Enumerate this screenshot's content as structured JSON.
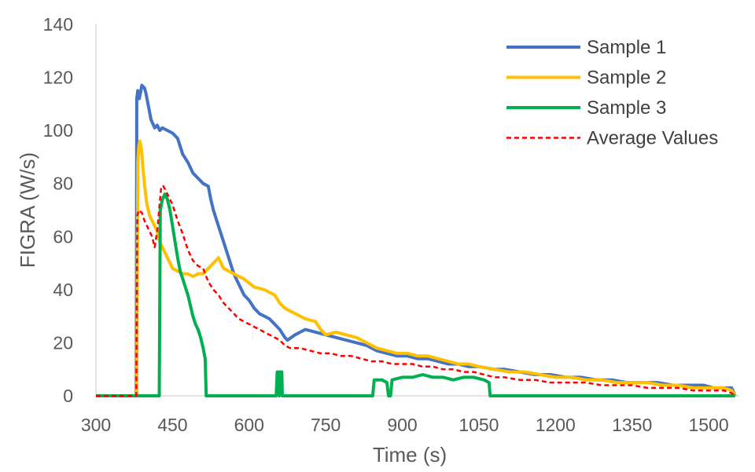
{
  "chart_data": {
    "type": "line",
    "xlabel": "Time (s)",
    "ylabel": "FIGRA (W/s)",
    "xlim": [
      300,
      1560
    ],
    "ylim": [
      0,
      140
    ],
    "x_ticks": [
      300,
      450,
      600,
      750,
      900,
      1050,
      1200,
      1350,
      1500
    ],
    "y_ticks": [
      0,
      20,
      40,
      60,
      80,
      100,
      120,
      140
    ],
    "grid": false,
    "legend_position": "top-right",
    "series": [
      {
        "name": "Sample 1",
        "color": "#4472C4",
        "dash": false,
        "points": [
          [
            300,
            0
          ],
          [
            377,
            0
          ],
          [
            379,
            0
          ],
          [
            380,
            112
          ],
          [
            382,
            115
          ],
          [
            385,
            112
          ],
          [
            390,
            117
          ],
          [
            395,
            116
          ],
          [
            398,
            114
          ],
          [
            402,
            110
          ],
          [
            408,
            104
          ],
          [
            415,
            101
          ],
          [
            420,
            102
          ],
          [
            425,
            100
          ],
          [
            430,
            101
          ],
          [
            440,
            100
          ],
          [
            450,
            99
          ],
          [
            460,
            97
          ],
          [
            470,
            91
          ],
          [
            480,
            88
          ],
          [
            490,
            84
          ],
          [
            500,
            82
          ],
          [
            510,
            80
          ],
          [
            520,
            79
          ],
          [
            525,
            74
          ],
          [
            530,
            70
          ],
          [
            540,
            64
          ],
          [
            550,
            58
          ],
          [
            560,
            52
          ],
          [
            570,
            46
          ],
          [
            580,
            42
          ],
          [
            590,
            38
          ],
          [
            600,
            36
          ],
          [
            610,
            33
          ],
          [
            620,
            31
          ],
          [
            630,
            30
          ],
          [
            640,
            29
          ],
          [
            650,
            27
          ],
          [
            660,
            25
          ],
          [
            670,
            22
          ],
          [
            675,
            21
          ],
          [
            690,
            23
          ],
          [
            710,
            25
          ],
          [
            730,
            24
          ],
          [
            750,
            23
          ],
          [
            770,
            22
          ],
          [
            790,
            21
          ],
          [
            810,
            20
          ],
          [
            830,
            19
          ],
          [
            850,
            17
          ],
          [
            870,
            16
          ],
          [
            890,
            15
          ],
          [
            910,
            15
          ],
          [
            930,
            14
          ],
          [
            950,
            14
          ],
          [
            970,
            13
          ],
          [
            990,
            12
          ],
          [
            1010,
            12
          ],
          [
            1030,
            11
          ],
          [
            1050,
            11
          ],
          [
            1080,
            10
          ],
          [
            1100,
            10
          ],
          [
            1130,
            9
          ],
          [
            1160,
            8
          ],
          [
            1190,
            8
          ],
          [
            1220,
            7
          ],
          [
            1250,
            7
          ],
          [
            1280,
            6
          ],
          [
            1310,
            6
          ],
          [
            1340,
            5
          ],
          [
            1370,
            5
          ],
          [
            1400,
            5
          ],
          [
            1430,
            4
          ],
          [
            1460,
            4
          ],
          [
            1490,
            4
          ],
          [
            1510,
            3
          ],
          [
            1530,
            3
          ],
          [
            1545,
            3
          ],
          [
            1552,
            0
          ]
        ]
      },
      {
        "name": "Sample 2",
        "color": "#FFC000",
        "dash": false,
        "points": [
          [
            300,
            0
          ],
          [
            377,
            0
          ],
          [
            380,
            0
          ],
          [
            382,
            88
          ],
          [
            384,
            94
          ],
          [
            386,
            96
          ],
          [
            389,
            93
          ],
          [
            392,
            86
          ],
          [
            396,
            78
          ],
          [
            400,
            72
          ],
          [
            405,
            68
          ],
          [
            410,
            66
          ],
          [
            420,
            62
          ],
          [
            425,
            58
          ],
          [
            430,
            56
          ],
          [
            440,
            52
          ],
          [
            450,
            48
          ],
          [
            460,
            47
          ],
          [
            470,
            46
          ],
          [
            480,
            46
          ],
          [
            490,
            45
          ],
          [
            500,
            46
          ],
          [
            510,
            46
          ],
          [
            520,
            48
          ],
          [
            530,
            50
          ],
          [
            540,
            52
          ],
          [
            550,
            48
          ],
          [
            560,
            47
          ],
          [
            570,
            46
          ],
          [
            590,
            44
          ],
          [
            610,
            41
          ],
          [
            630,
            40
          ],
          [
            650,
            38
          ],
          [
            660,
            35
          ],
          [
            670,
            33
          ],
          [
            690,
            31
          ],
          [
            710,
            29
          ],
          [
            730,
            28
          ],
          [
            740,
            25
          ],
          [
            750,
            23
          ],
          [
            770,
            24
          ],
          [
            790,
            23
          ],
          [
            810,
            22
          ],
          [
            830,
            20
          ],
          [
            850,
            18
          ],
          [
            870,
            17
          ],
          [
            890,
            16
          ],
          [
            910,
            16
          ],
          [
            930,
            15
          ],
          [
            950,
            15
          ],
          [
            970,
            14
          ],
          [
            990,
            13
          ],
          [
            1010,
            12
          ],
          [
            1030,
            12
          ],
          [
            1050,
            11
          ],
          [
            1080,
            10
          ],
          [
            1110,
            9
          ],
          [
            1140,
            9
          ],
          [
            1170,
            8
          ],
          [
            1200,
            7
          ],
          [
            1230,
            7
          ],
          [
            1260,
            6
          ],
          [
            1290,
            6
          ],
          [
            1320,
            5
          ],
          [
            1350,
            5
          ],
          [
            1380,
            5
          ],
          [
            1410,
            4
          ],
          [
            1440,
            4
          ],
          [
            1470,
            3
          ],
          [
            1500,
            3
          ],
          [
            1530,
            3
          ],
          [
            1545,
            2
          ],
          [
            1552,
            0
          ]
        ]
      },
      {
        "name": "Sample 3",
        "color": "#00B050",
        "dash": false,
        "points": [
          [
            300,
            0
          ],
          [
            420,
            0
          ],
          [
            424,
            0
          ],
          [
            426,
            70
          ],
          [
            430,
            74
          ],
          [
            435,
            76
          ],
          [
            440,
            74
          ],
          [
            445,
            70
          ],
          [
            450,
            64
          ],
          [
            455,
            58
          ],
          [
            460,
            52
          ],
          [
            465,
            47
          ],
          [
            470,
            44
          ],
          [
            480,
            38
          ],
          [
            490,
            30
          ],
          [
            495,
            27
          ],
          [
            500,
            25
          ],
          [
            505,
            22
          ],
          [
            510,
            18
          ],
          [
            514,
            14
          ],
          [
            516,
            0
          ],
          [
            653,
            0
          ],
          [
            655,
            9
          ],
          [
            658,
            9
          ],
          [
            659,
            0
          ],
          [
            661,
            9
          ],
          [
            664,
            9
          ],
          [
            665,
            0
          ],
          [
            842,
            0
          ],
          [
            845,
            6
          ],
          [
            860,
            6
          ],
          [
            870,
            5
          ],
          [
            873,
            0
          ],
          [
            877,
            0
          ],
          [
            880,
            6
          ],
          [
            900,
            7
          ],
          [
            920,
            7
          ],
          [
            940,
            8
          ],
          [
            960,
            7
          ],
          [
            980,
            7
          ],
          [
            1000,
            6
          ],
          [
            1020,
            7
          ],
          [
            1040,
            7
          ],
          [
            1060,
            6
          ],
          [
            1070,
            5
          ],
          [
            1072,
            0
          ],
          [
            1552,
            0
          ]
        ]
      },
      {
        "name": "Average Values",
        "color": "#FF0000",
        "dash": true,
        "points": [
          [
            300,
            0
          ],
          [
            377,
            0
          ],
          [
            379,
            0
          ],
          [
            381,
            68
          ],
          [
            384,
            70
          ],
          [
            390,
            69
          ],
          [
            395,
            66
          ],
          [
            400,
            64
          ],
          [
            405,
            62
          ],
          [
            410,
            60
          ],
          [
            415,
            56
          ],
          [
            420,
            62
          ],
          [
            425,
            73
          ],
          [
            428,
            79
          ],
          [
            432,
            79
          ],
          [
            440,
            76
          ],
          [
            450,
            72
          ],
          [
            460,
            66
          ],
          [
            470,
            61
          ],
          [
            480,
            55
          ],
          [
            490,
            51
          ],
          [
            500,
            49
          ],
          [
            510,
            48
          ],
          [
            520,
            43
          ],
          [
            530,
            40
          ],
          [
            540,
            38
          ],
          [
            550,
            35
          ],
          [
            560,
            33
          ],
          [
            570,
            31
          ],
          [
            580,
            29
          ],
          [
            590,
            28
          ],
          [
            600,
            27
          ],
          [
            620,
            25
          ],
          [
            640,
            23
          ],
          [
            660,
            21
          ],
          [
            670,
            19
          ],
          [
            680,
            18
          ],
          [
            700,
            18
          ],
          [
            720,
            17
          ],
          [
            740,
            16
          ],
          [
            760,
            16
          ],
          [
            780,
            15
          ],
          [
            800,
            15
          ],
          [
            820,
            14
          ],
          [
            840,
            13
          ],
          [
            860,
            13
          ],
          [
            880,
            12
          ],
          [
            900,
            12
          ],
          [
            920,
            12
          ],
          [
            940,
            11
          ],
          [
            960,
            11
          ],
          [
            980,
            10
          ],
          [
            1000,
            10
          ],
          [
            1020,
            9
          ],
          [
            1040,
            9
          ],
          [
            1060,
            8
          ],
          [
            1080,
            7
          ],
          [
            1100,
            7
          ],
          [
            1130,
            6
          ],
          [
            1160,
            6
          ],
          [
            1190,
            5
          ],
          [
            1220,
            5
          ],
          [
            1260,
            5
          ],
          [
            1290,
            4
          ],
          [
            1320,
            4
          ],
          [
            1350,
            4
          ],
          [
            1380,
            3
          ],
          [
            1410,
            3
          ],
          [
            1440,
            3
          ],
          [
            1470,
            2
          ],
          [
            1500,
            2
          ],
          [
            1530,
            2
          ],
          [
            1545,
            1
          ],
          [
            1552,
            0
          ]
        ]
      }
    ]
  }
}
